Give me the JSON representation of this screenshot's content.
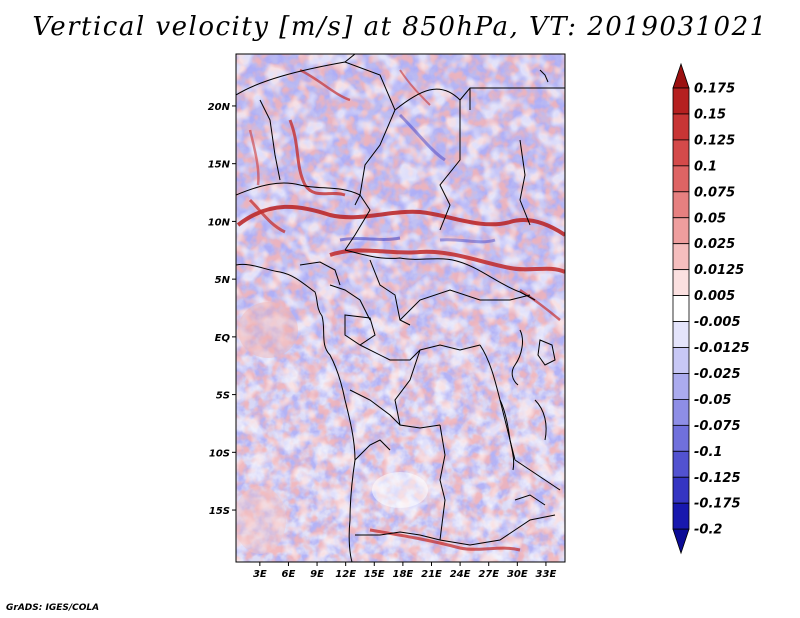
{
  "title": "Vertical velocity [m/s] at 850hPa, VT: 2019031021",
  "footer": "GrADS: IGES/COLA",
  "map": {
    "region": "Central Africa",
    "lat_labels": [
      {
        "lat": 20,
        "label": "20N"
      },
      {
        "lat": 15,
        "label": "15N"
      },
      {
        "lat": 10,
        "label": "10N"
      },
      {
        "lat": 5,
        "label": "5N"
      },
      {
        "lat": 0,
        "label": "EQ"
      },
      {
        "lat": -5,
        "label": "5S"
      },
      {
        "lat": -10,
        "label": "10S"
      },
      {
        "lat": -15,
        "label": "15S"
      }
    ],
    "lon_labels": [
      {
        "lon": 3,
        "label": "3E"
      },
      {
        "lon": 6,
        "label": "6E"
      },
      {
        "lon": 9,
        "label": "9E"
      },
      {
        "lon": 12,
        "label": "12E"
      },
      {
        "lon": 15,
        "label": "15E"
      },
      {
        "lon": 18,
        "label": "18E"
      },
      {
        "lon": 21,
        "label": "21E"
      },
      {
        "lon": 24,
        "label": "24E"
      },
      {
        "lon": 27,
        "label": "27E"
      },
      {
        "lon": 30,
        "label": "30E"
      },
      {
        "lon": 33,
        "label": "33E"
      }
    ],
    "lat_range": [
      -19.5,
      24.5
    ],
    "lon_range": [
      0.5,
      35
    ]
  },
  "colorbar": {
    "labels": [
      "0.175",
      "0.15",
      "0.125",
      "0.1",
      "0.075",
      "0.05",
      "0.025",
      "0.0125",
      "0.005",
      "-0.005",
      "-0.0125",
      "-0.025",
      "-0.05",
      "-0.075",
      "-0.1",
      "-0.125",
      "-0.175",
      "-0.2"
    ],
    "colors": [
      "#9b1010",
      "#b52020",
      "#c83535",
      "#d44a4a",
      "#de6464",
      "#e68080",
      "#ee9e9e",
      "#f5bebe",
      "#fbe0e0",
      "#ffffff",
      "#e4e4fb",
      "#c8c8f5",
      "#ababee",
      "#8e8ee6",
      "#7070dc",
      "#5252d0",
      "#3535c2",
      "#1818ae",
      "#0b0b96"
    ],
    "top_arrow_color": "#9b1010",
    "bottom_arrow_color": "#0b0b96"
  }
}
